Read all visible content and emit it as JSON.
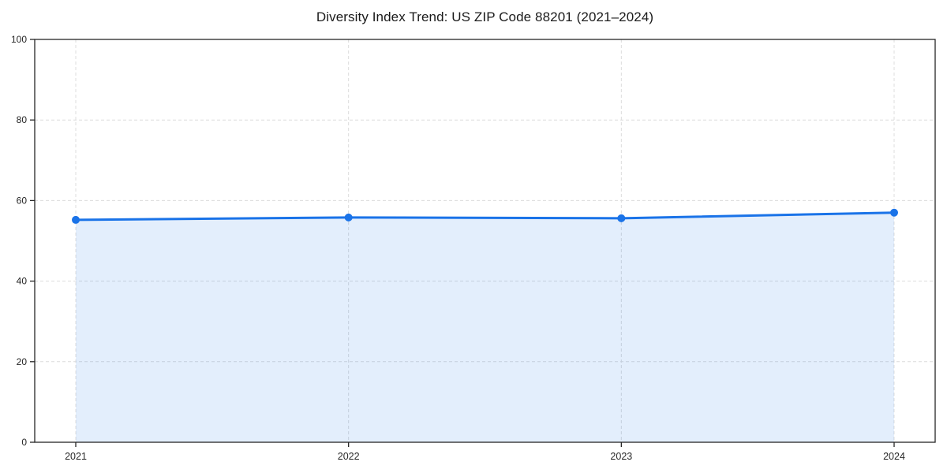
{
  "chart_data": {
    "type": "area",
    "title": "Diversity Index Trend: US ZIP Code 88201 (2021–2024)",
    "categories": [
      "2021",
      "2022",
      "2023",
      "2024"
    ],
    "series": [
      {
        "name": "Diversity Index",
        "values": [
          55.2,
          55.8,
          55.6,
          57.0
        ]
      }
    ],
    "xlabel": "",
    "ylabel": "",
    "ylim": [
      0,
      100
    ],
    "yticks": [
      0,
      20,
      40,
      60,
      80,
      100
    ],
    "grid": "dashed-both-axes",
    "legend_position": "none",
    "colors": {
      "line": "#1a73e8",
      "marker": "#1a73e8",
      "area_fill": "rgba(26,115,232,0.12)",
      "gridline": "#dcdcdc",
      "spine": "#262626",
      "tick_label": "#262626",
      "background": "#ffffff"
    },
    "marker_style": "circle",
    "marker_radius": 5,
    "line_width": 3
  }
}
